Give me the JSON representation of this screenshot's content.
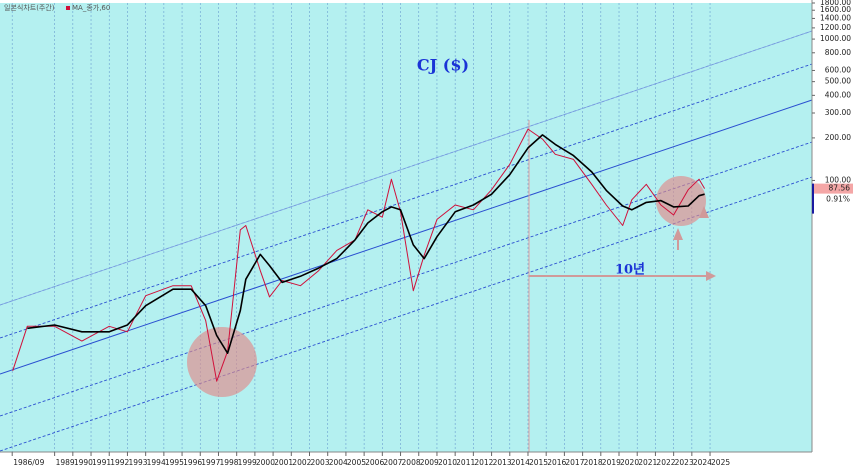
{
  "chart_data": {
    "type": "line",
    "title": "CJ ($)",
    "annotations": [
      {
        "text": "10년"
      }
    ],
    "last_price": 87.56,
    "change_label": "0.91%",
    "log_scale": true,
    "grid": "x",
    "x": [
      1986.7,
      1987.5,
      1989,
      1990.5,
      1992,
      1993,
      1994,
      1995.5,
      1996.5,
      1997.3,
      1997.9,
      1998.5,
      1999.2,
      1999.5,
      2000.3,
      2000.8,
      2001.5,
      2002.5,
      2003.5,
      2004.5,
      2005.5,
      2006.2,
      2007,
      2007.5,
      2008,
      2008.7,
      2009.3,
      2010,
      2011,
      2012,
      2013,
      2014,
      2015,
      2015.8,
      2016.5,
      2017.5,
      2018.5,
      2019.3,
      2020.2,
      2020.7,
      2021.5,
      2022.3,
      2023,
      2023.8,
      2024.4,
      2024.7
    ],
    "series": [
      {
        "name": "일본식차트(주간)",
        "color": "#d0103a",
        "values": [
          4.5,
          9.3,
          9.3,
          7.3,
          9.3,
          8.5,
          15.3,
          18,
          18,
          10.2,
          3.8,
          6.2,
          44.7,
          48,
          23,
          15,
          19.6,
          18,
          23,
          32,
          38,
          62,
          55,
          102,
          60,
          16.6,
          29.6,
          53,
          67,
          62,
          86,
          130,
          231,
          196,
          153,
          141,
          94,
          67,
          48,
          73,
          94,
          67,
          57,
          86,
          102,
          87.56
        ]
      },
      {
        "name": "MA_종가,60",
        "color": "#000000",
        "values": [
          null,
          9,
          9.5,
          8.5,
          8.5,
          9.5,
          13,
          17,
          17,
          13,
          8,
          6,
          12,
          20,
          30,
          25,
          19,
          21,
          24,
          28,
          38,
          50,
          60,
          65,
          62,
          35,
          28,
          40,
          60,
          67,
          80,
          110,
          170,
          210,
          180,
          150,
          115,
          85,
          66,
          62,
          70,
          72,
          65,
          66,
          78,
          80
        ]
      }
    ],
    "xlim": [
      1986,
      2030.6
    ],
    "xticks": [
      {
        "value": 1986.67,
        "label": "1986/09"
      },
      1989,
      1990,
      1991,
      1992,
      1993,
      1994,
      1995,
      1996,
      1997,
      1998,
      1999,
      2000,
      2001,
      2002,
      2003,
      2004,
      2005,
      2006,
      2007,
      2008,
      2009,
      2010,
      2011,
      2012,
      2013,
      2014,
      2015,
      2016,
      2017,
      2018,
      2019,
      2020,
      2021,
      2022,
      2023,
      2024,
      2025
    ],
    "ylim": [
      1.2,
      1800
    ],
    "yticks": [
      {
        "value": 1800,
        "label": "1800.00"
      },
      {
        "value": 1600,
        "label": "1600.00"
      },
      {
        "value": 1400,
        "label": "1400.00"
      },
      {
        "value": 1200,
        "label": "1200.00"
      },
      {
        "value": 1000,
        "label": "1000.00"
      },
      {
        "value": 800,
        "label": "800.00"
      },
      {
        "value": 600,
        "label": "600.00"
      },
      {
        "value": 500,
        "label": "500.00"
      },
      {
        "value": 400,
        "label": "400.00"
      },
      {
        "value": 300,
        "label": "300.00"
      },
      {
        "value": 200,
        "label": "200.00"
      },
      {
        "value": 100,
        "label": "100.00"
      }
    ]
  }
}
